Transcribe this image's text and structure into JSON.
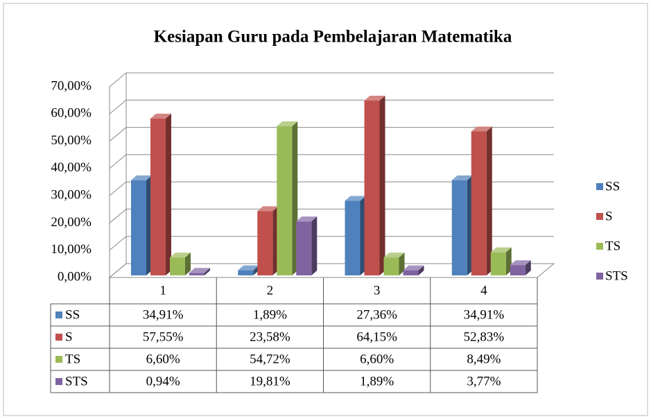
{
  "chart_data": {
    "type": "bar3d",
    "title": "Kesiapan Guru pada Pembelajaran Matematika",
    "categories": [
      "1",
      "2",
      "3",
      "4"
    ],
    "series": [
      {
        "name": "SS",
        "color": "#4f81bd",
        "values": [
          34.91,
          1.89,
          27.36,
          34.91
        ],
        "value_labels": [
          "34,91%",
          "1,89%",
          "27,36%",
          "34,91%"
        ]
      },
      {
        "name": "S",
        "color": "#c0504d",
        "values": [
          57.55,
          23.58,
          64.15,
          52.83
        ],
        "value_labels": [
          "57,55%",
          "23,58%",
          "64,15%",
          "52,83%"
        ]
      },
      {
        "name": "TS",
        "color": "#9bbb59",
        "values": [
          6.6,
          54.72,
          6.6,
          8.49
        ],
        "value_labels": [
          "6,60%",
          "54,72%",
          "6,60%",
          "8,49%"
        ]
      },
      {
        "name": "STS",
        "color": "#8064a2",
        "values": [
          0.94,
          19.81,
          1.89,
          3.77
        ],
        "value_labels": [
          "0,94%",
          "19,81%",
          "1,89%",
          "3,77%"
        ]
      }
    ],
    "ylim": [
      0,
      70
    ],
    "yticks": [
      {
        "value": 0,
        "label": "0,00%"
      },
      {
        "value": 10,
        "label": "10,00%"
      },
      {
        "value": 20,
        "label": "20,00%"
      },
      {
        "value": 30,
        "label": "30,00%"
      },
      {
        "value": 40,
        "label": "40,00%"
      },
      {
        "value": 50,
        "label": "50,00%"
      },
      {
        "value": 60,
        "label": "60,00%"
      },
      {
        "value": 70,
        "label": "70,00%"
      }
    ],
    "grid": true,
    "legend": "right"
  }
}
